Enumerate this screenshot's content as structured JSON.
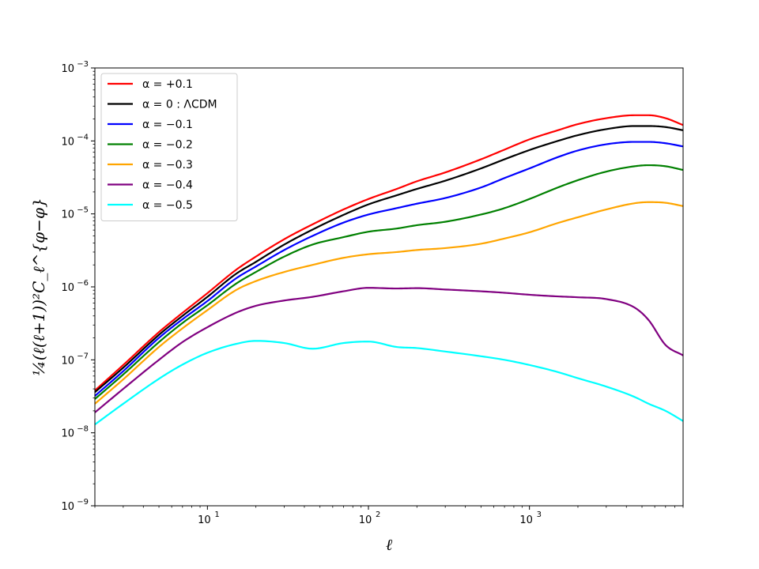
{
  "chart_data": {
    "type": "line",
    "title": "",
    "xlabel": "ℓ",
    "ylabel": "¼(ℓ(ℓ+1))²C_ℓ^{φ−φ}",
    "xscale": "log",
    "yscale": "log",
    "xlim": [
      2,
      9000
    ],
    "ylim": [
      1e-09,
      0.001
    ],
    "grid": false,
    "legend_position": "top-left",
    "x_ticks": [
      {
        "value": 10,
        "label": "10",
        "exp": "1"
      },
      {
        "value": 100,
        "label": "10",
        "exp": "2"
      },
      {
        "value": 1000,
        "label": "10",
        "exp": "3"
      }
    ],
    "y_ticks": [
      {
        "value": 1e-09,
        "label": "10",
        "exp": "−9"
      },
      {
        "value": 1e-08,
        "label": "10",
        "exp": "−8"
      },
      {
        "value": 1e-07,
        "label": "10",
        "exp": "−7"
      },
      {
        "value": 1e-06,
        "label": "10",
        "exp": "−6"
      },
      {
        "value": 1e-05,
        "label": "10",
        "exp": "−5"
      },
      {
        "value": 0.0001,
        "label": "10",
        "exp": "−4"
      },
      {
        "value": 0.001,
        "label": "10",
        "exp": "−3"
      }
    ],
    "x": [
      2,
      3,
      5,
      7,
      10,
      15,
      20,
      30,
      45,
      70,
      100,
      150,
      200,
      300,
      500,
      700,
      1000,
      1500,
      2000,
      3000,
      4500,
      5500,
      7000,
      9000
    ],
    "series": [
      {
        "name": "α = +0.1",
        "color": "#ff0000",
        "values": [
          3.8e-08,
          8.5e-08,
          2.4e-07,
          4.4e-07,
          8.2e-07,
          1.7e-06,
          2.6e-06,
          4.5e-06,
          7.2e-06,
          1.15e-05,
          1.6e-05,
          2.2e-05,
          2.8e-05,
          3.7e-05,
          5.6e-05,
          7.6e-05,
          0.000105,
          0.00014,
          0.00017,
          0.000205,
          0.000225,
          0.000225,
          0.000205,
          0.000165
        ]
      },
      {
        "name": "α = 0 : ΛCDM",
        "color": "#000000",
        "values": [
          3.6e-08,
          7.8e-08,
          2.2e-07,
          4e-07,
          7.3e-07,
          1.5e-06,
          2.2e-06,
          3.8e-06,
          6.1e-06,
          9.7e-06,
          1.35e-05,
          1.8e-05,
          2.2e-05,
          2.85e-05,
          4.2e-05,
          5.6e-05,
          7.5e-05,
          0.0001,
          0.00012,
          0.000145,
          0.00016,
          0.00016,
          0.000155,
          0.00014
        ]
      },
      {
        "name": "α = −0.1",
        "color": "#0000ff",
        "values": [
          3.2e-08,
          7e-08,
          2e-07,
          3.6e-07,
          6.4e-07,
          1.3e-06,
          1.9e-06,
          3.2e-06,
          5e-06,
          7.6e-06,
          9.8e-06,
          1.2e-05,
          1.38e-05,
          1.65e-05,
          2.3e-05,
          3.1e-05,
          4.2e-05,
          6e-05,
          7.4e-05,
          9e-05,
          9.7e-05,
          9.7e-05,
          9.3e-05,
          8.4e-05
        ]
      },
      {
        "name": "α = −0.2",
        "color": "#008000",
        "values": [
          2.9e-08,
          6.3e-08,
          1.75e-07,
          3.2e-07,
          5.6e-07,
          1.1e-06,
          1.6e-06,
          2.6e-06,
          3.8e-06,
          4.8e-06,
          5.7e-06,
          6.3e-06,
          7e-06,
          7.8e-06,
          9.8e-06,
          1.2e-05,
          1.6e-05,
          2.3e-05,
          2.9e-05,
          3.8e-05,
          4.5e-05,
          4.65e-05,
          4.5e-05,
          4e-05
        ]
      },
      {
        "name": "α = −0.3",
        "color": "#ffa500",
        "values": [
          2.5e-08,
          5.4e-08,
          1.5e-07,
          2.7e-07,
          4.8e-07,
          9e-07,
          1.2e-06,
          1.6e-06,
          2e-06,
          2.5e-06,
          2.8e-06,
          3e-06,
          3.2e-06,
          3.4e-06,
          3.9e-06,
          4.6e-06,
          5.6e-06,
          7.5e-06,
          9e-06,
          1.15e-05,
          1.4e-05,
          1.45e-05,
          1.42e-05,
          1.28e-05
        ]
      },
      {
        "name": "α = −0.4",
        "color": "#800080",
        "values": [
          1.9e-08,
          4e-08,
          1e-07,
          1.75e-07,
          2.8e-07,
          4.4e-07,
          5.5e-07,
          6.5e-07,
          7.3e-07,
          8.7e-07,
          9.7e-07,
          9.5e-07,
          9.6e-07,
          9.2e-07,
          8.7e-07,
          8.3e-07,
          7.8e-07,
          7.4e-07,
          7.2e-07,
          6.8e-07,
          5.2e-07,
          3.5e-07,
          1.6e-07,
          1.15e-07
        ]
      },
      {
        "name": "α = −0.5",
        "color": "#00ffff",
        "values": [
          1.3e-08,
          2.5e-08,
          5.5e-08,
          8.6e-08,
          1.25e-07,
          1.65e-07,
          1.82e-07,
          1.7e-07,
          1.42e-07,
          1.7e-07,
          1.78e-07,
          1.5e-07,
          1.45e-07,
          1.3e-07,
          1.12e-07,
          1e-07,
          8.5e-08,
          6.8e-08,
          5.6e-08,
          4.3e-08,
          3.1e-08,
          2.5e-08,
          2e-08,
          1.45e-08
        ]
      }
    ]
  }
}
